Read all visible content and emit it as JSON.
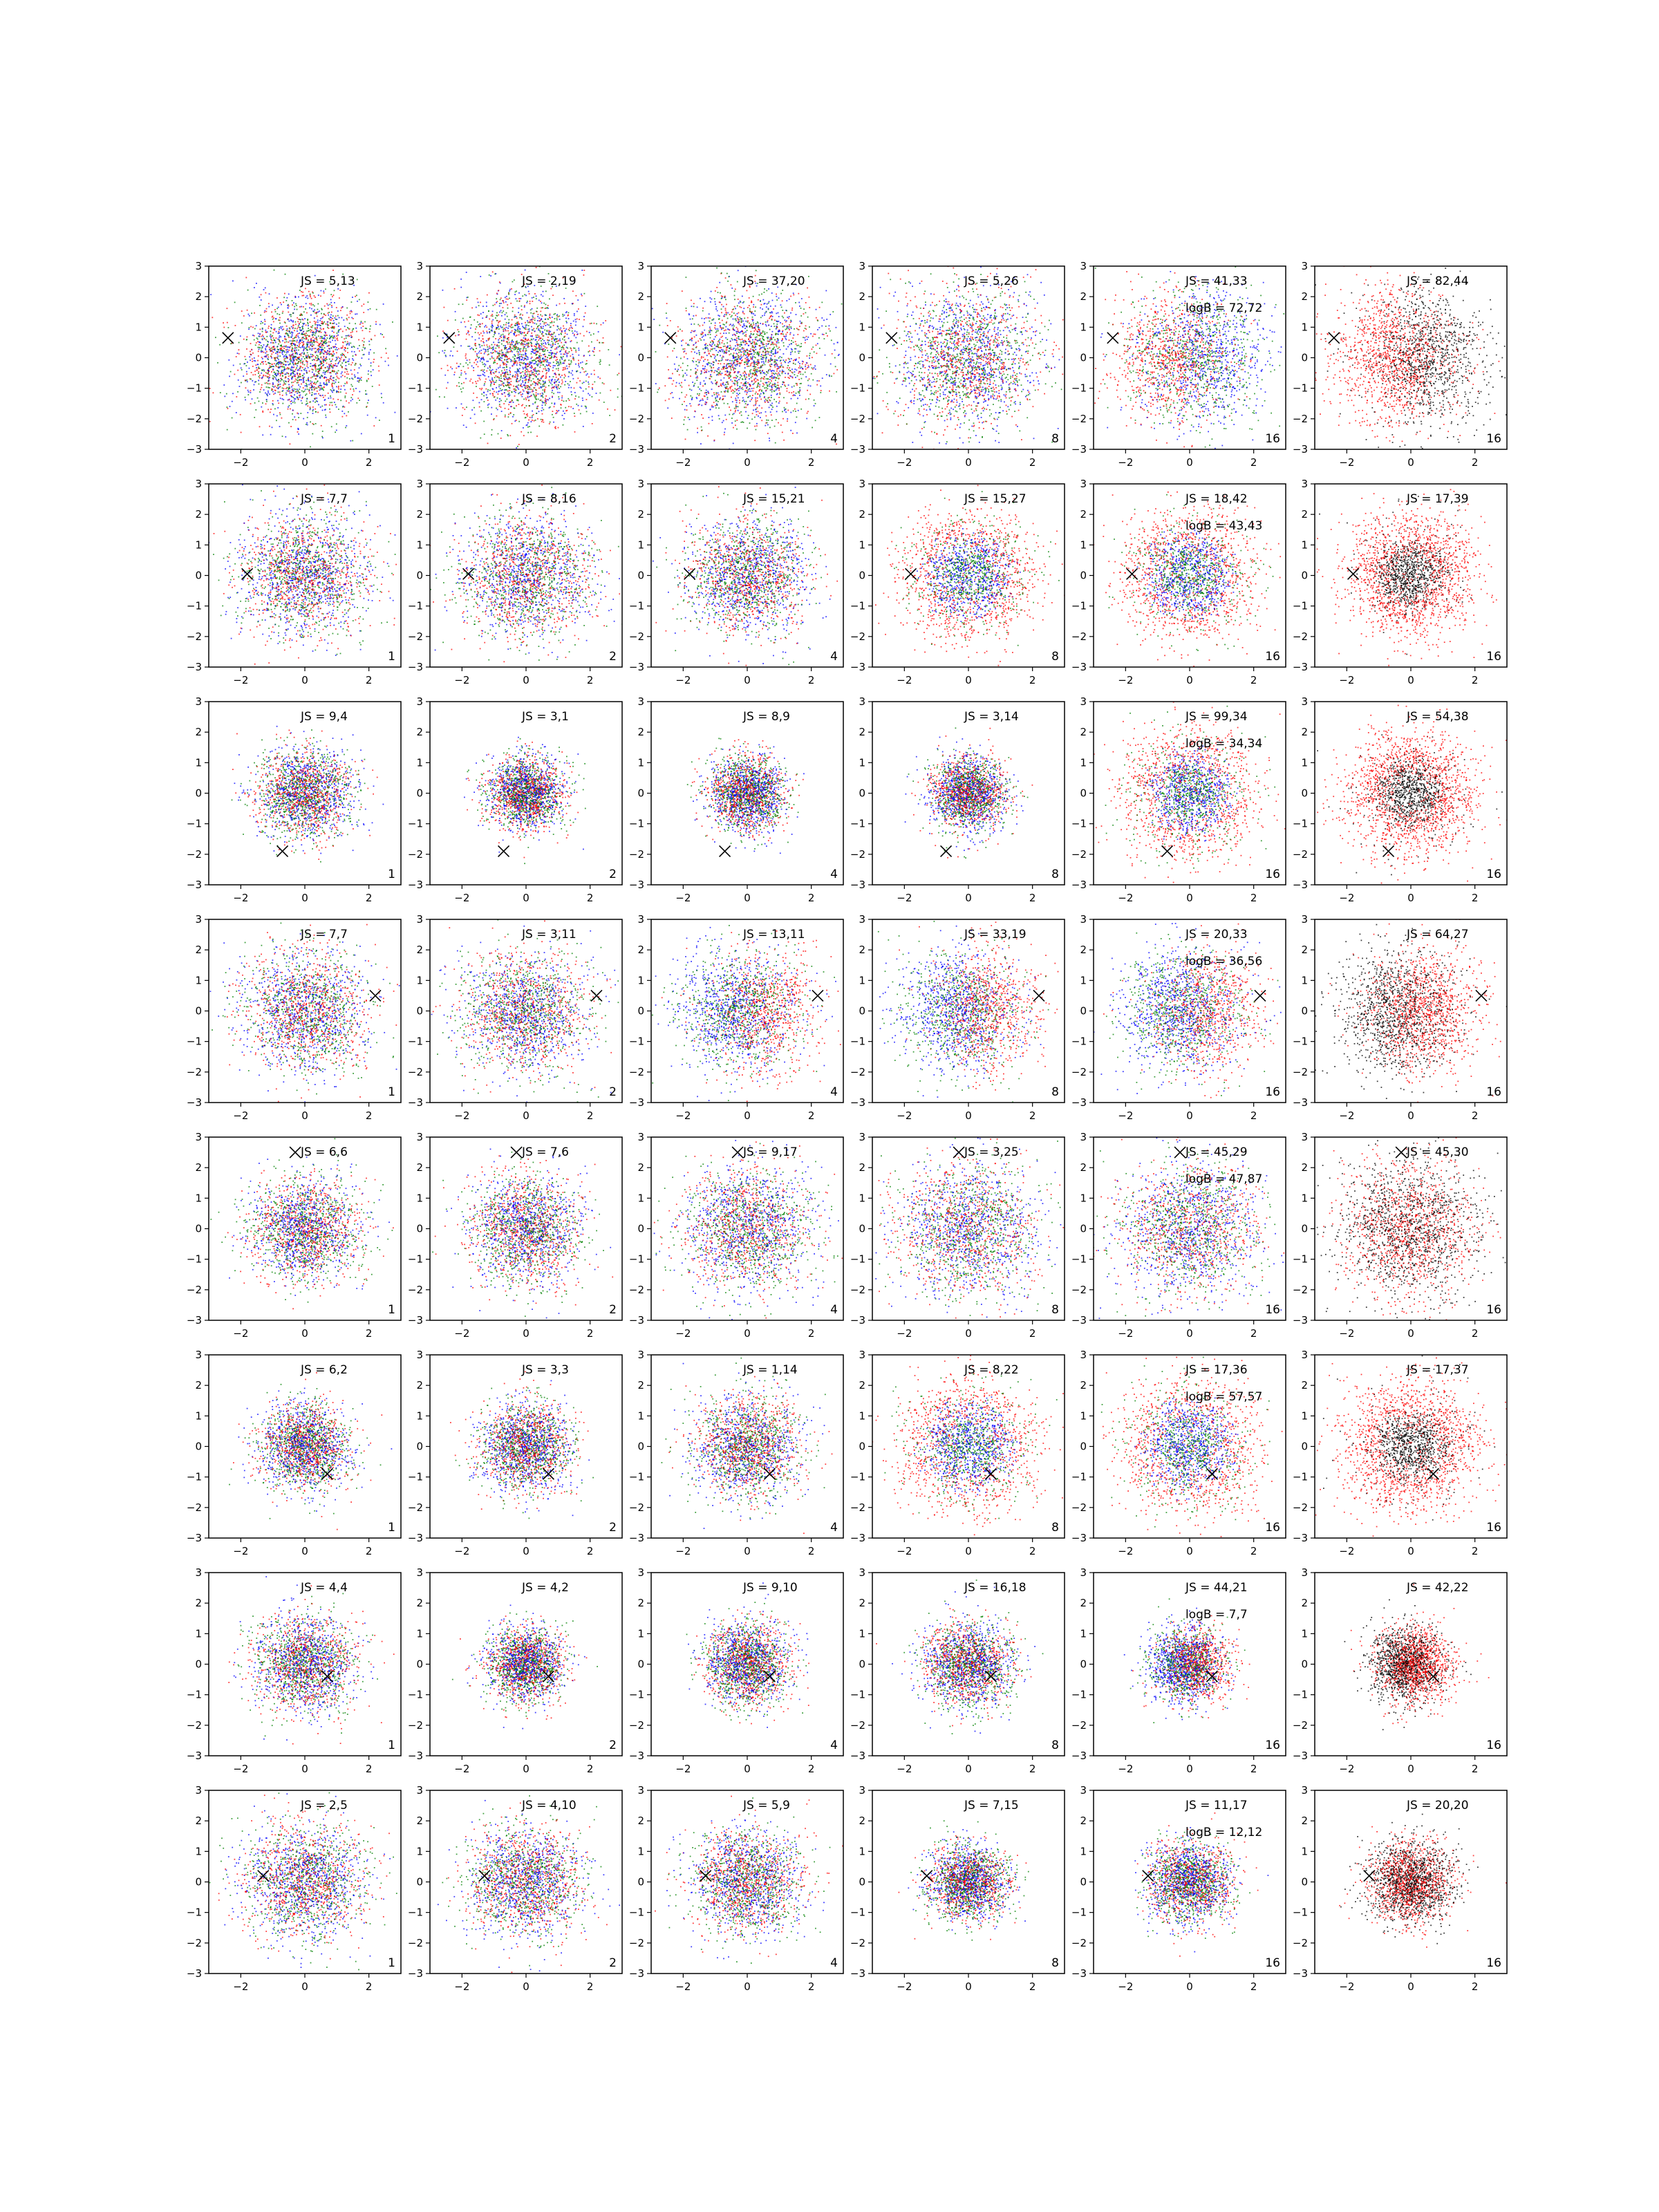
{
  "figure": {
    "description_rows": 8,
    "description_cols": 6
  },
  "chart_data": {
    "type": "scatter",
    "grid": false,
    "xlim": [
      -3,
      3
    ],
    "ylim": [
      -3,
      3
    ],
    "xticks": [
      -2,
      0,
      2
    ],
    "yticks": [
      -3,
      -2,
      -1,
      0,
      1,
      2,
      3
    ],
    "colors": {
      "red": "#ff0000",
      "green": "#008000",
      "blue": "#0000ff",
      "black": "#000000",
      "marker": "#000000"
    },
    "marker_symbol": "×",
    "panels": [
      {
        "row": 0,
        "col": 0,
        "js": "JS = 5,13",
        "logb": "",
        "n": "1",
        "marker": [
          -2.4,
          0.65
        ],
        "scheme": "rgb",
        "spread": 1.0,
        "pattern": "uniform"
      },
      {
        "row": 0,
        "col": 1,
        "js": "JS = 2,19",
        "logb": "",
        "n": "2",
        "marker": [
          -2.4,
          0.65
        ],
        "scheme": "rgb",
        "spread": 1.05,
        "pattern": "uniform"
      },
      {
        "row": 0,
        "col": 2,
        "js": "JS = 37,20",
        "logb": "",
        "n": "4",
        "marker": [
          -2.4,
          0.65
        ],
        "scheme": "rgb",
        "spread": 1.1,
        "pattern": "uniform"
      },
      {
        "row": 0,
        "col": 3,
        "js": "JS = 5,26",
        "logb": "",
        "n": "8",
        "marker": [
          -2.4,
          0.65
        ],
        "scheme": "rgb",
        "spread": 1.1,
        "pattern": "uniform"
      },
      {
        "row": 0,
        "col": 4,
        "js": "JS = 41,33",
        "logb": "logB = 72,72",
        "n": "16",
        "marker": [
          -2.4,
          0.65
        ],
        "scheme": "rgb",
        "spread": 1.1,
        "pattern": "left-red"
      },
      {
        "row": 0,
        "col": 5,
        "js": "JS = 82,44",
        "logb": "",
        "n": "16",
        "marker": [
          -2.4,
          0.65
        ],
        "scheme": "rk",
        "spread": 1.1,
        "pattern": "left-red"
      },
      {
        "row": 1,
        "col": 0,
        "js": "JS = 7,7",
        "logb": "",
        "n": "1",
        "marker": [
          -1.8,
          0.05
        ],
        "scheme": "rgb",
        "spread": 1.0,
        "pattern": "uniform"
      },
      {
        "row": 1,
        "col": 1,
        "js": "JS = 8,16",
        "logb": "",
        "n": "2",
        "marker": [
          -1.8,
          0.05
        ],
        "scheme": "rgb",
        "spread": 1.05,
        "pattern": "uniform"
      },
      {
        "row": 1,
        "col": 2,
        "js": "JS = 15,21",
        "logb": "",
        "n": "4",
        "marker": [
          -1.8,
          0.05
        ],
        "scheme": "rgb",
        "spread": 0.95,
        "pattern": "uniform"
      },
      {
        "row": 1,
        "col": 3,
        "js": "JS = 15,27",
        "logb": "",
        "n": "8",
        "marker": [
          -1.8,
          0.05
        ],
        "scheme": "rgb",
        "spread": 0.95,
        "pattern": "ring-red"
      },
      {
        "row": 1,
        "col": 4,
        "js": "JS = 18,42",
        "logb": "logB = 43,43",
        "n": "16",
        "marker": [
          -1.8,
          0.05
        ],
        "scheme": "rgb",
        "spread": 0.95,
        "pattern": "ring-red"
      },
      {
        "row": 1,
        "col": 5,
        "js": "JS = 17,39",
        "logb": "",
        "n": "16",
        "marker": [
          -1.8,
          0.05
        ],
        "scheme": "rk",
        "spread": 0.95,
        "pattern": "ring-red"
      },
      {
        "row": 2,
        "col": 0,
        "js": "JS = 9,4",
        "logb": "",
        "n": "1",
        "marker": [
          -0.7,
          -1.9
        ],
        "scheme": "rgb",
        "spread": 0.75,
        "pattern": "uniform"
      },
      {
        "row": 2,
        "col": 1,
        "js": "JS = 3,1",
        "logb": "",
        "n": "2",
        "marker": [
          -0.7,
          -1.9
        ],
        "scheme": "rgb",
        "spread": 0.6,
        "pattern": "uniform"
      },
      {
        "row": 2,
        "col": 2,
        "js": "JS = 8,9",
        "logb": "",
        "n": "4",
        "marker": [
          -0.7,
          -1.9
        ],
        "scheme": "rgb",
        "spread": 0.6,
        "pattern": "uniform"
      },
      {
        "row": 2,
        "col": 3,
        "js": "JS = 3,14",
        "logb": "",
        "n": "8",
        "marker": [
          -0.7,
          -1.9
        ],
        "scheme": "rgb",
        "spread": 0.6,
        "pattern": "uniform"
      },
      {
        "row": 2,
        "col": 4,
        "js": "JS = 99,34",
        "logb": "logB = 34,34",
        "n": "16",
        "marker": [
          -0.7,
          -1.9
        ],
        "scheme": "rgb",
        "spread": 0.95,
        "pattern": "ring-red"
      },
      {
        "row": 2,
        "col": 5,
        "js": "JS = 54,38",
        "logb": "",
        "n": "16",
        "marker": [
          -0.7,
          -1.9
        ],
        "scheme": "rk",
        "spread": 0.95,
        "pattern": "ring-red"
      },
      {
        "row": 3,
        "col": 0,
        "js": "JS = 7,7",
        "logb": "",
        "n": "1",
        "marker": [
          2.2,
          0.5
        ],
        "scheme": "rgb",
        "spread": 1.0,
        "pattern": "uniform"
      },
      {
        "row": 3,
        "col": 1,
        "js": "JS = 3,11",
        "logb": "",
        "n": "2",
        "marker": [
          2.2,
          0.5
        ],
        "scheme": "rgb",
        "spread": 1.0,
        "pattern": "uniform"
      },
      {
        "row": 3,
        "col": 2,
        "js": "JS = 13,11",
        "logb": "",
        "n": "4",
        "marker": [
          2.2,
          0.5
        ],
        "scheme": "rgb",
        "spread": 1.0,
        "pattern": "right-red"
      },
      {
        "row": 3,
        "col": 3,
        "js": "JS = 33,19",
        "logb": "",
        "n": "8",
        "marker": [
          2.2,
          0.5
        ],
        "scheme": "rgb",
        "spread": 1.0,
        "pattern": "right-red"
      },
      {
        "row": 3,
        "col": 4,
        "js": "JS = 20,33",
        "logb": "logB = 36,56",
        "n": "16",
        "marker": [
          2.2,
          0.5
        ],
        "scheme": "rgb",
        "spread": 1.0,
        "pattern": "right-red"
      },
      {
        "row": 3,
        "col": 5,
        "js": "JS = 64,27",
        "logb": "",
        "n": "16",
        "marker": [
          2.2,
          0.5
        ],
        "scheme": "rk",
        "spread": 1.0,
        "pattern": "right-red"
      },
      {
        "row": 4,
        "col": 0,
        "js": "JS = 6,6",
        "logb": "",
        "n": "1",
        "marker": [
          -0.3,
          2.5
        ],
        "scheme": "rgb",
        "spread": 0.85,
        "pattern": "uniform"
      },
      {
        "row": 4,
        "col": 1,
        "js": "JS = 7,6",
        "logb": "",
        "n": "2",
        "marker": [
          -0.3,
          2.5
        ],
        "scheme": "rgb",
        "spread": 0.85,
        "pattern": "uniform"
      },
      {
        "row": 4,
        "col": 2,
        "js": "JS = 9,17",
        "logb": "",
        "n": "4",
        "marker": [
          -0.3,
          2.5
        ],
        "scheme": "rgb",
        "spread": 1.05,
        "pattern": "uniform"
      },
      {
        "row": 4,
        "col": 3,
        "js": "JS = 3,25",
        "logb": "",
        "n": "8",
        "marker": [
          -0.3,
          2.5
        ],
        "scheme": "rgb",
        "spread": 1.1,
        "pattern": "uniform"
      },
      {
        "row": 4,
        "col": 4,
        "js": "JS = 45,29",
        "logb": "logB = 47,87",
        "n": "16",
        "marker": [
          -0.3,
          2.5
        ],
        "scheme": "rgb",
        "spread": 1.1,
        "pattern": "uniform"
      },
      {
        "row": 4,
        "col": 5,
        "js": "JS = 45,30",
        "logb": "",
        "n": "16",
        "marker": [
          -0.3,
          2.5
        ],
        "scheme": "rk",
        "spread": 1.1,
        "pattern": "uniform"
      },
      {
        "row": 5,
        "col": 0,
        "js": "JS = 6,2",
        "logb": "",
        "n": "1",
        "marker": [
          0.7,
          -0.9
        ],
        "scheme": "rgb",
        "spread": 0.7,
        "pattern": "uniform"
      },
      {
        "row": 5,
        "col": 1,
        "js": "JS = 3,3",
        "logb": "",
        "n": "2",
        "marker": [
          0.7,
          -0.9
        ],
        "scheme": "rgb",
        "spread": 0.7,
        "pattern": "uniform"
      },
      {
        "row": 5,
        "col": 2,
        "js": "JS = 1,14",
        "logb": "",
        "n": "4",
        "marker": [
          0.7,
          -0.9
        ],
        "scheme": "rgb",
        "spread": 0.85,
        "pattern": "uniform"
      },
      {
        "row": 5,
        "col": 3,
        "js": "JS = 8,22",
        "logb": "",
        "n": "8",
        "marker": [
          0.7,
          -0.9
        ],
        "scheme": "rgb",
        "spread": 1.0,
        "pattern": "ring-red"
      },
      {
        "row": 5,
        "col": 4,
        "js": "JS = 17,36",
        "logb": "logB = 57,57",
        "n": "16",
        "marker": [
          0.7,
          -0.9
        ],
        "scheme": "rgb",
        "spread": 1.0,
        "pattern": "ring-red"
      },
      {
        "row": 5,
        "col": 5,
        "js": "JS = 17,37",
        "logb": "",
        "n": "16",
        "marker": [
          0.7,
          -0.9
        ],
        "scheme": "rk",
        "spread": 1.0,
        "pattern": "ring-red"
      },
      {
        "row": 6,
        "col": 0,
        "js": "JS = 4,4",
        "logb": "",
        "n": "1",
        "marker": [
          0.7,
          -0.4
        ],
        "scheme": "rgb",
        "spread": 0.8,
        "pattern": "uniform"
      },
      {
        "row": 6,
        "col": 1,
        "js": "JS = 4,2",
        "logb": "",
        "n": "2",
        "marker": [
          0.7,
          -0.4
        ],
        "scheme": "rgb",
        "spread": 0.6,
        "pattern": "uniform"
      },
      {
        "row": 6,
        "col": 2,
        "js": "JS = 9,10",
        "logb": "",
        "n": "4",
        "marker": [
          0.7,
          -0.4
        ],
        "scheme": "rgb",
        "spread": 0.65,
        "pattern": "uniform"
      },
      {
        "row": 6,
        "col": 3,
        "js": "JS = 16,18",
        "logb": "",
        "n": "8",
        "marker": [
          0.7,
          -0.4
        ],
        "scheme": "rgb",
        "spread": 0.7,
        "pattern": "uniform"
      },
      {
        "row": 6,
        "col": 4,
        "js": "JS = 44,21",
        "logb": "logB = 7,7",
        "n": "16",
        "marker": [
          0.7,
          -0.4
        ],
        "scheme": "rgb",
        "spread": 0.6,
        "pattern": "right-red"
      },
      {
        "row": 6,
        "col": 5,
        "js": "JS = 42,22",
        "logb": "",
        "n": "16",
        "marker": [
          0.7,
          -0.4
        ],
        "scheme": "rk",
        "spread": 0.6,
        "pattern": "right-red"
      },
      {
        "row": 7,
        "col": 0,
        "js": "JS = 2,5",
        "logb": "",
        "n": "1",
        "marker": [
          -1.3,
          0.2
        ],
        "scheme": "rgb",
        "spread": 0.95,
        "pattern": "uniform"
      },
      {
        "row": 7,
        "col": 1,
        "js": "JS = 4,10",
        "logb": "",
        "n": "2",
        "marker": [
          -1.3,
          0.2
        ],
        "scheme": "rgb",
        "spread": 0.9,
        "pattern": "uniform"
      },
      {
        "row": 7,
        "col": 2,
        "js": "JS = 5,9",
        "logb": "",
        "n": "4",
        "marker": [
          -1.3,
          0.2
        ],
        "scheme": "rgb",
        "spread": 0.85,
        "pattern": "uniform"
      },
      {
        "row": 7,
        "col": 3,
        "js": "JS = 7,15",
        "logb": "",
        "n": "8",
        "marker": [
          -1.3,
          0.2
        ],
        "scheme": "rgb",
        "spread": 0.6,
        "pattern": "uniform"
      },
      {
        "row": 7,
        "col": 4,
        "js": "JS = 11,17",
        "logb": "logB = 12,12",
        "n": "16",
        "marker": [
          -1.3,
          0.2
        ],
        "scheme": "rgb",
        "spread": 0.65,
        "pattern": "uniform"
      },
      {
        "row": 7,
        "col": 5,
        "js": "JS = 20,20",
        "logb": "",
        "n": "16",
        "marker": [
          -1.3,
          0.2
        ],
        "scheme": "rk",
        "spread": 0.65,
        "pattern": "uniform"
      }
    ]
  }
}
